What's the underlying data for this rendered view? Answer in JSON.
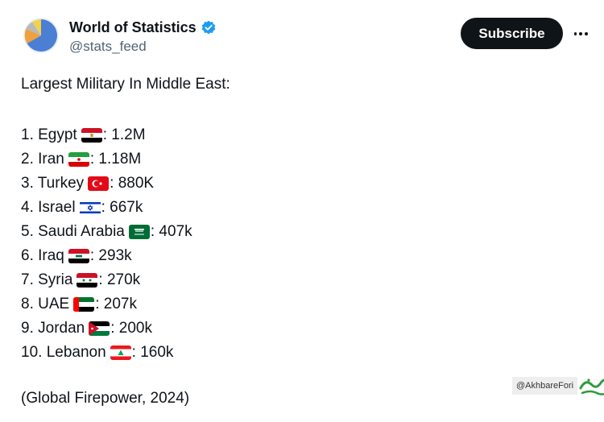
{
  "account": {
    "display_name": "World of Statistics",
    "handle": "@stats_feed",
    "subscribe_label": "Subscribe",
    "avatar_icon": "pie-chart-avatar",
    "verified_icon": "verified-badge-icon",
    "more_icon": "more-options-icon"
  },
  "post": {
    "title": "Largest Military In Middle East:",
    "items": [
      {
        "text_before": "1. Egypt",
        "flag": "egypt-flag",
        "value": ": 1.2M"
      },
      {
        "text_before": "2. Iran",
        "flag": "iran-flag",
        "value": ": 1.18M"
      },
      {
        "text_before": "3. Turkey",
        "flag": "turkey-flag",
        "value": ": 880K"
      },
      {
        "text_before": "4. Israel",
        "flag": "israel-flag",
        "value": ": 667k"
      },
      {
        "text_before": "5. Saudi Arabia",
        "flag": "saudi-arabia-flag",
        "value": ": 407k"
      },
      {
        "text_before": "6. Iraq",
        "flag": "iraq-flag",
        "value": ": 293k"
      },
      {
        "text_before": "7. Syria",
        "flag": "syria-flag",
        "value": ": 270k"
      },
      {
        "text_before": "8. UAE",
        "flag": "uae-flag",
        "value": ": 207k"
      },
      {
        "text_before": "9. Jordan",
        "flag": "jordan-flag",
        "value": ": 200k"
      },
      {
        "text_before": "10. Lebanon",
        "flag": "lebanon-flag",
        "value": ": 160k"
      }
    ],
    "source": "(Global Firepower, 2024)"
  },
  "watermark": {
    "handle": "@AkhbareFori",
    "logo": "akhbare-fori-logo"
  },
  "colors": {
    "text": "#0f1419",
    "secondary": "#536471",
    "verified": "#1d9bf0",
    "button_bg": "#0f1419",
    "button_text": "#ffffff"
  }
}
